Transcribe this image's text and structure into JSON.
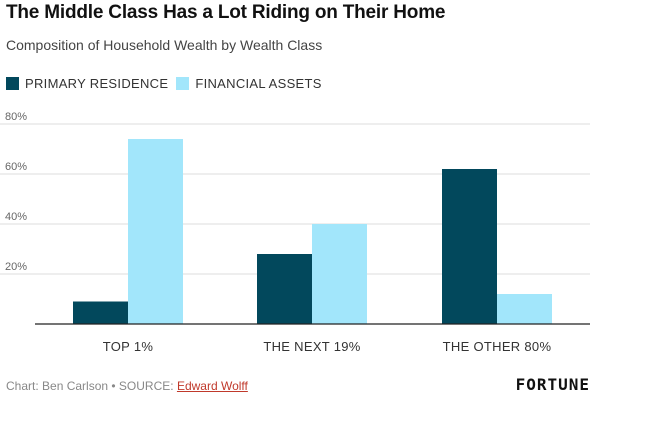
{
  "header": {
    "title": "The Middle Class Has a Lot Riding on Their Home",
    "subtitle": "Composition of Household Wealth by Wealth Class"
  },
  "legend": [
    {
      "label": "PRIMARY RESIDENCE",
      "color": "#02485c"
    },
    {
      "label": "FINANCIAL ASSETS",
      "color": "#a2e6fb"
    }
  ],
  "chart_data": {
    "type": "bar",
    "title": "The Middle Class Has a Lot Riding on Their Home",
    "subtitle": "Composition of Household Wealth by Wealth Class",
    "categories": [
      "TOP 1%",
      "THE NEXT 19%",
      "THE OTHER 80%"
    ],
    "series": [
      {
        "name": "PRIMARY RESIDENCE",
        "values": [
          9,
          28,
          62
        ],
        "color": "#02485c"
      },
      {
        "name": "FINANCIAL ASSETS",
        "values": [
          74,
          40,
          12
        ],
        "color": "#a2e6fb"
      }
    ],
    "ylim": [
      0,
      80
    ],
    "yticks": [
      {
        "value": 20,
        "label": "20%"
      },
      {
        "value": 40,
        "label": "40%"
      },
      {
        "value": 60,
        "label": "60%"
      },
      {
        "value": 80,
        "label": "80%"
      }
    ],
    "grid": true,
    "legend_position": "top-left"
  },
  "footer": {
    "credit": "Chart: Ben Carlson • SOURCE: ",
    "source_link": "Edward Wolff",
    "brand": "FORTUNE"
  }
}
